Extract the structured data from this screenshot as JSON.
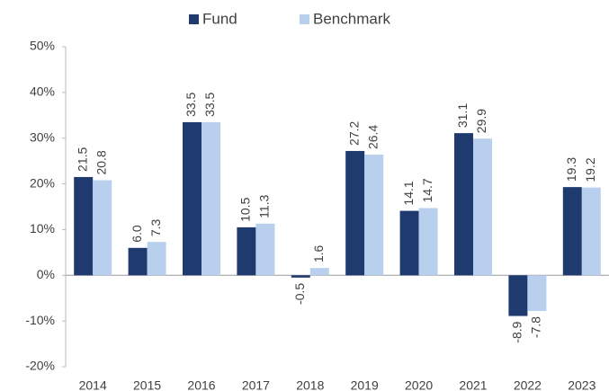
{
  "chart_data": {
    "type": "bar",
    "categories": [
      "2014",
      "2015",
      "2016",
      "2017",
      "2018",
      "2019",
      "2020",
      "2021",
      "2022",
      "2023"
    ],
    "series": [
      {
        "name": "Fund",
        "color": "#1f3a6e",
        "values": [
          21.5,
          6.0,
          33.5,
          10.5,
          -0.5,
          27.2,
          14.1,
          31.1,
          -8.9,
          19.3
        ],
        "value_labels": [
          "21.5",
          "6.0",
          "33.5",
          "10.5",
          "-0.5",
          "27.2",
          "14.1",
          "31.1",
          "-8.9",
          "19.3"
        ]
      },
      {
        "name": "Benchmark",
        "color": "#b8d0ee",
        "values": [
          20.8,
          7.3,
          33.5,
          11.3,
          1.6,
          26.4,
          14.7,
          29.9,
          -7.8,
          19.2
        ],
        "value_labels": [
          "20.8",
          "7.3",
          "33.5",
          "11.3",
          "1.6",
          "26.4",
          "14.7",
          "29.9",
          "-7.8",
          "19.2"
        ]
      }
    ],
    "ylim": [
      -20,
      50
    ],
    "yticks": [
      {
        "value": -20,
        "label": "-20%"
      },
      {
        "value": -10,
        "label": "-10%"
      },
      {
        "value": 0,
        "label": "0%"
      },
      {
        "value": 10,
        "label": "10%"
      },
      {
        "value": 20,
        "label": "20%"
      },
      {
        "value": 30,
        "label": "30%"
      },
      {
        "value": 40,
        "label": "40%"
      },
      {
        "value": 50,
        "label": "50%"
      }
    ],
    "legend": "top"
  }
}
